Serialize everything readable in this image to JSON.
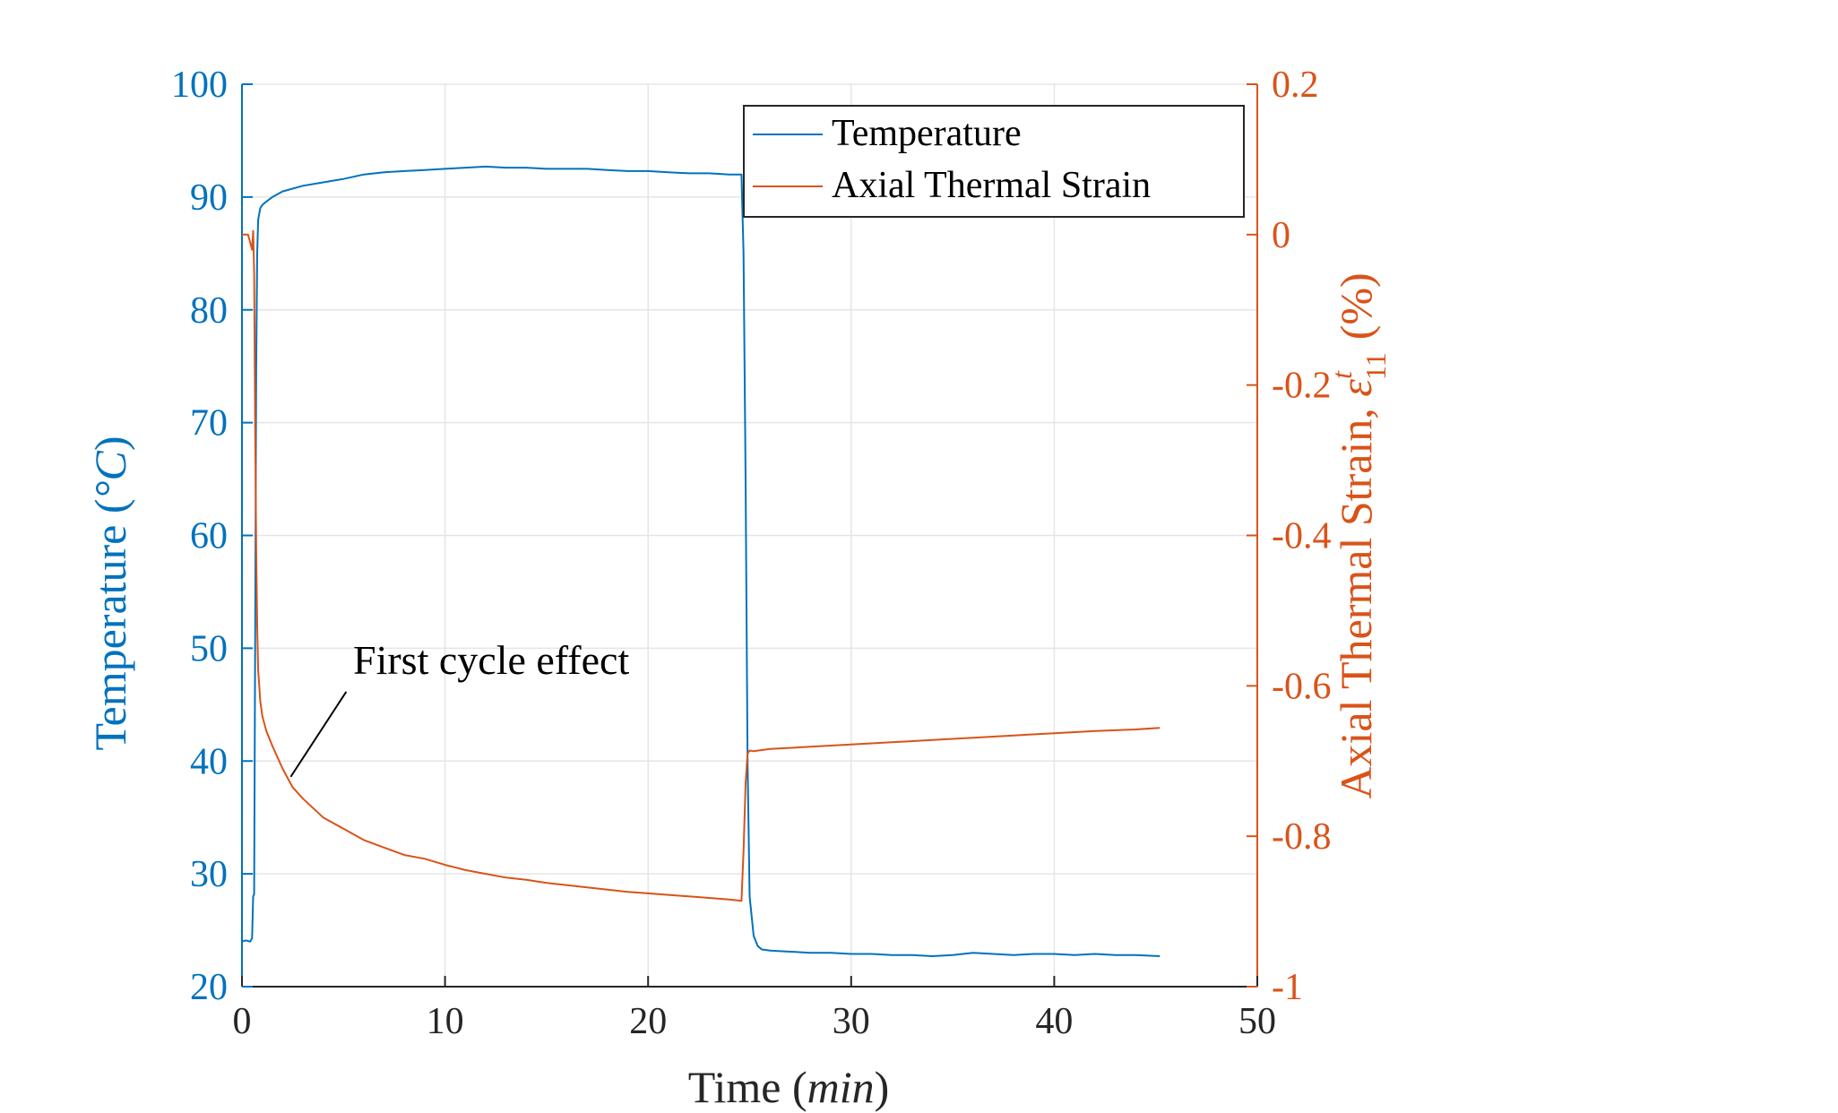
{
  "chart_data": {
    "type": "line",
    "title": "",
    "xlabel": "Time",
    "xlabel_unit": "min",
    "ylabel_left": "Temperature",
    "ylabel_left_unit": "°C",
    "ylabel_right": "Axial Thermal Strain, ",
    "ylabel_right_symbol": "ε",
    "ylabel_right_sup": "t",
    "ylabel_right_sub": "11",
    "ylabel_right_unit": "(%)",
    "xlim": [
      0,
      50
    ],
    "ylim_left": [
      20,
      100
    ],
    "ylim_right": [
      -1,
      0.2
    ],
    "x_ticks": [
      "0",
      "10",
      "20",
      "30",
      "40",
      "50"
    ],
    "y_left_ticks": [
      "20",
      "30",
      "40",
      "50",
      "60",
      "70",
      "80",
      "90",
      "100"
    ],
    "y_right_ticks": [
      "-1",
      "-0.8",
      "-0.6",
      "-0.4",
      "-0.2",
      "0",
      "0.2"
    ],
    "grid": true,
    "legend_position": "top-right",
    "colors": {
      "temperature": "#0072BD",
      "strain": "#D95319",
      "axis_left": "#0072BD",
      "axis_right": "#D95319",
      "grid": "#E5E5E5"
    },
    "series": [
      {
        "name": "Temperature",
        "axis": "left",
        "x": [
          0,
          0.2,
          0.4,
          0.5,
          0.55,
          0.6,
          0.65,
          0.7,
          0.75,
          0.8,
          0.9,
          1.0,
          1.2,
          1.5,
          2,
          3,
          4,
          5,
          6,
          7,
          8,
          9,
          10,
          11,
          12,
          13,
          14,
          15,
          16,
          17,
          18,
          19,
          20,
          21,
          22,
          23,
          24,
          24.6,
          24.7,
          24.8,
          24.9,
          25.0,
          25.2,
          25.4,
          25.6,
          26,
          27,
          28,
          29,
          30,
          31,
          32,
          33,
          34,
          35,
          36,
          37,
          38,
          39,
          40,
          41,
          42,
          43,
          44,
          45.2
        ],
        "values": [
          24.0,
          24.1,
          24.0,
          24.3,
          28.0,
          28.2,
          50,
          75,
          85,
          88.0,
          89.0,
          89.3,
          89.6,
          90.0,
          90.5,
          91.0,
          91.3,
          91.6,
          92.0,
          92.2,
          92.3,
          92.4,
          92.5,
          92.6,
          92.7,
          92.6,
          92.6,
          92.5,
          92.5,
          92.5,
          92.4,
          92.3,
          92.3,
          92.2,
          92.1,
          92.1,
          92.0,
          92.0,
          85,
          65,
          40,
          28,
          24.5,
          23.6,
          23.3,
          23.2,
          23.1,
          23.0,
          23.0,
          22.9,
          22.9,
          22.8,
          22.8,
          22.7,
          22.8,
          23.0,
          22.9,
          22.8,
          22.9,
          22.9,
          22.8,
          22.9,
          22.8,
          22.8,
          22.7
        ]
      },
      {
        "name": "Axial Thermal Strain",
        "axis": "right",
        "x": [
          0,
          0.3,
          0.5,
          0.55,
          0.6,
          0.65,
          0.7,
          0.75,
          0.8,
          0.85,
          0.9,
          1.0,
          1.2,
          1.5,
          2,
          2.5,
          3,
          4,
          5,
          6,
          7,
          8,
          9,
          10,
          11,
          12,
          13,
          14,
          15,
          16,
          17,
          18,
          19,
          20,
          21,
          22,
          23,
          24,
          24.6,
          24.7,
          24.8,
          24.9,
          25.0,
          25.2,
          26,
          28,
          30,
          32,
          34,
          36,
          38,
          40,
          42,
          44,
          45.2
        ],
        "values": [
          0.0,
          0.0,
          -0.02,
          0.005,
          -0.05,
          -0.25,
          -0.42,
          -0.52,
          -0.58,
          -0.6,
          -0.62,
          -0.64,
          -0.66,
          -0.68,
          -0.71,
          -0.735,
          -0.75,
          -0.775,
          -0.79,
          -0.805,
          -0.815,
          -0.825,
          -0.83,
          -0.838,
          -0.845,
          -0.85,
          -0.855,
          -0.858,
          -0.862,
          -0.865,
          -0.868,
          -0.871,
          -0.874,
          -0.876,
          -0.878,
          -0.88,
          -0.882,
          -0.884,
          -0.886,
          -0.82,
          -0.73,
          -0.69,
          -0.686,
          -0.687,
          -0.684,
          -0.681,
          -0.678,
          -0.675,
          -0.672,
          -0.669,
          -0.666,
          -0.663,
          -0.66,
          -0.658,
          -0.656
        ]
      }
    ],
    "annotations": [
      {
        "text": "First cycle effect",
        "target_x": 2.4,
        "target_y_left": 38.6
      }
    ]
  }
}
